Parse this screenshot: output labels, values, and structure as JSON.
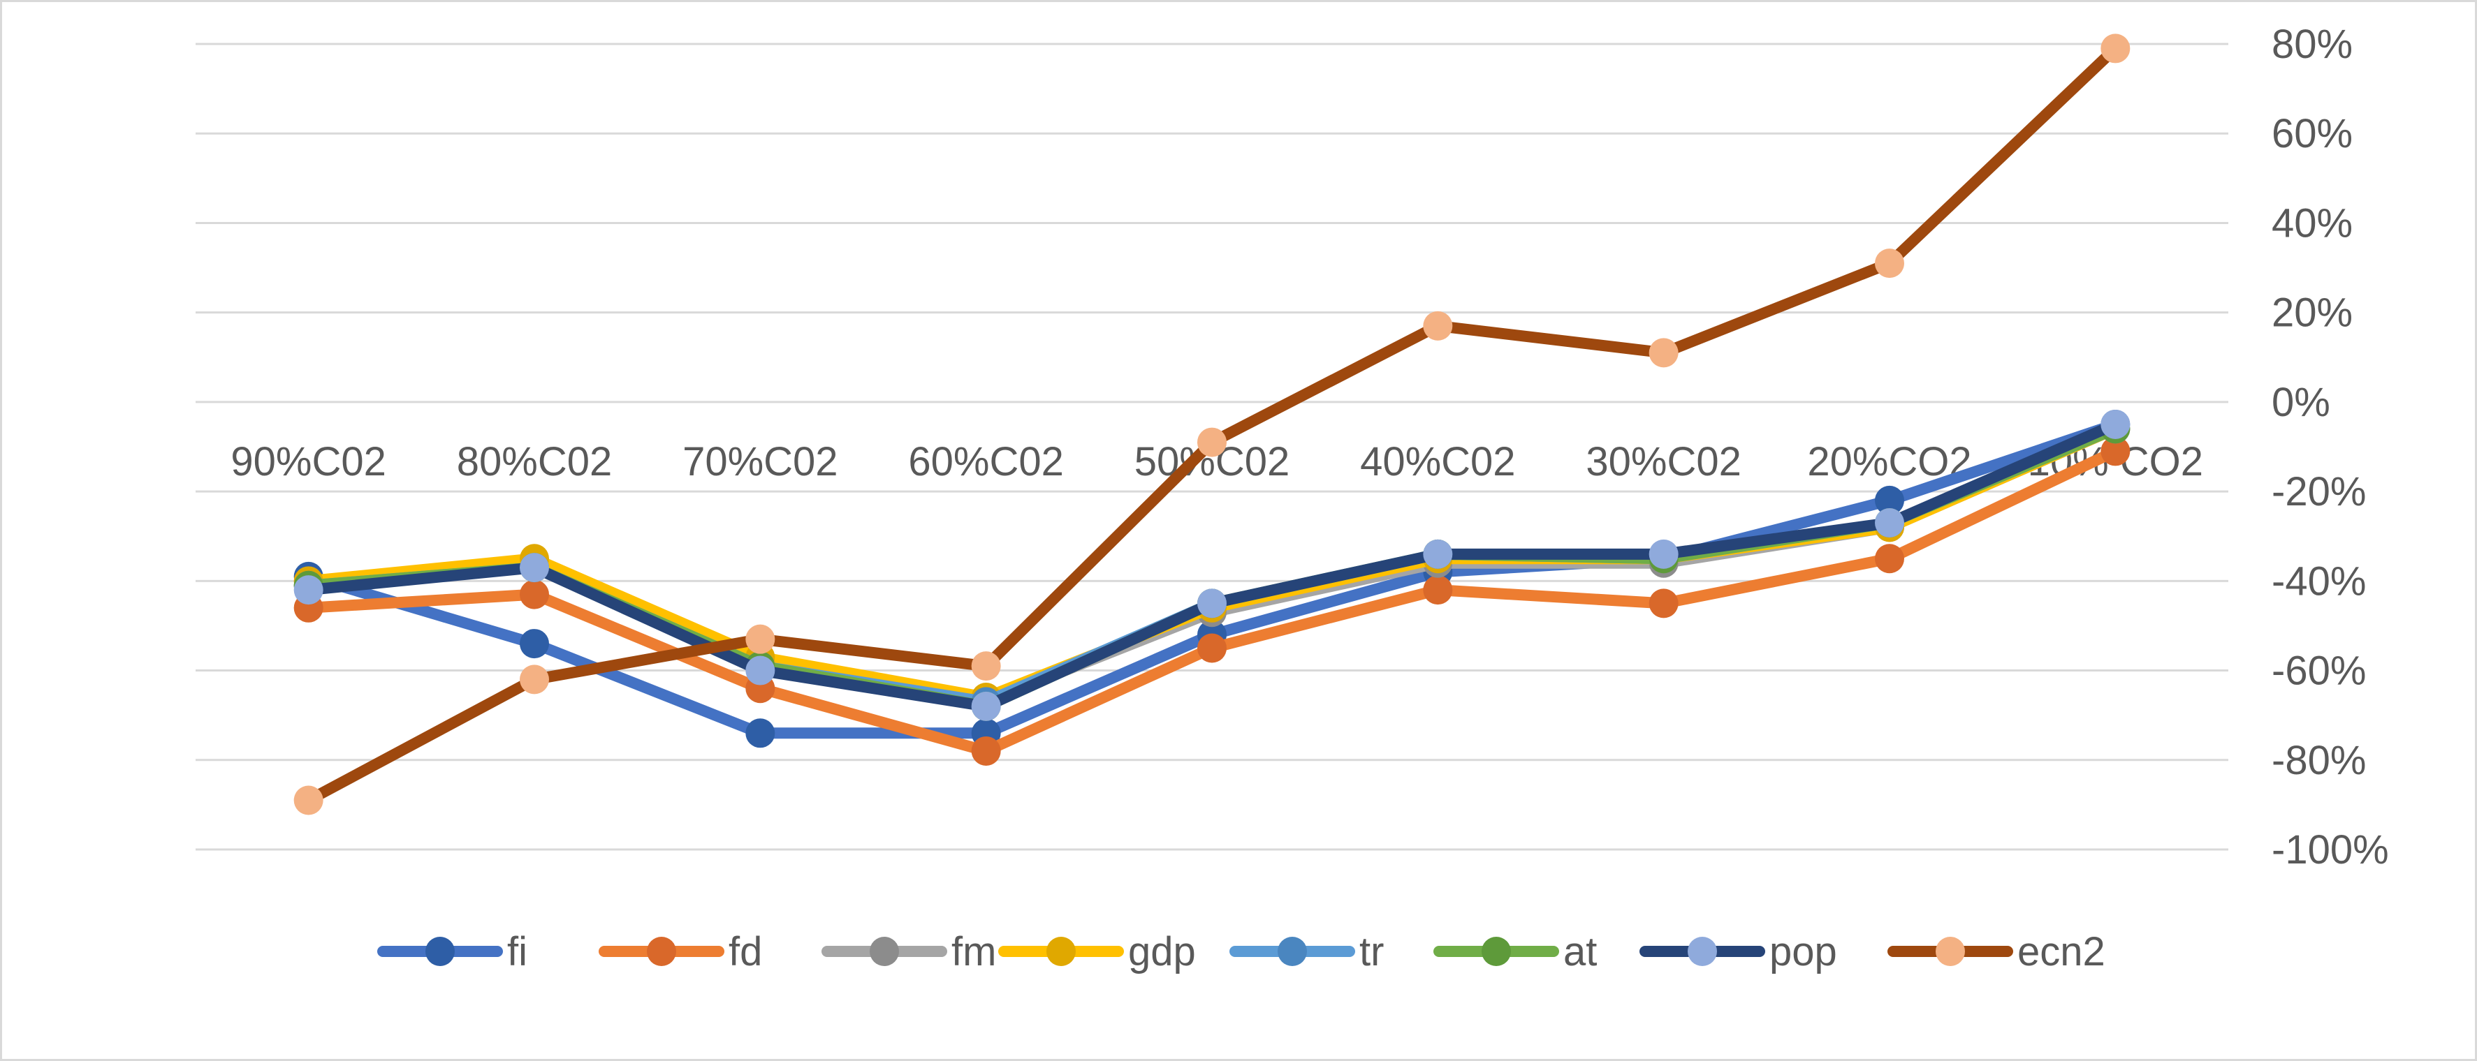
{
  "chart_data": {
    "type": "line",
    "title": "",
    "xlabel": "",
    "ylabel": "",
    "categories": [
      "90%C02",
      "80%C02",
      "70%C02",
      "60%C02",
      "50%C02",
      "40%C02",
      "30%C02",
      "20%CO2",
      "10% CO2"
    ],
    "y_ticks": [
      "80%",
      "60%",
      "40%",
      "20%",
      "0%",
      "-20%",
      "-40%",
      "-60%",
      "-80%",
      "-100%"
    ],
    "ylim": [
      -100,
      80
    ],
    "y_unit": "%",
    "y_axis_side": "right",
    "grid": true,
    "legend": "bottom",
    "series": [
      {
        "name": "fi",
        "color": "#4472c4",
        "marker_color": "#2e5ea6",
        "values": [
          -39,
          -54,
          -74,
          -74,
          -52,
          -38,
          -35,
          -22,
          -5
        ]
      },
      {
        "name": "fd",
        "color": "#ed7d31",
        "marker_color": "#d9682a",
        "values": [
          -46,
          -43,
          -64,
          -78,
          -55,
          -42,
          -45,
          -35,
          -11
        ]
      },
      {
        "name": "fm",
        "color": "#a5a5a5",
        "marker_color": "#8c8c8c",
        "values": [
          -41,
          -36,
          -58,
          -67,
          -47,
          -36,
          -36,
          -28,
          -6
        ]
      },
      {
        "name": "gdp",
        "color": "#ffc000",
        "marker_color": "#e0a800",
        "values": [
          -40,
          -35,
          -57,
          -66,
          -46,
          -35,
          -35,
          -28,
          -6
        ]
      },
      {
        "name": "tr",
        "color": "#5b9bd5",
        "marker_color": "#4a86c0",
        "values": [
          -41,
          -37,
          -59,
          -67,
          -45,
          -34,
          -35,
          -27,
          -6
        ]
      },
      {
        "name": "at",
        "color": "#70ad47",
        "marker_color": "#5e9a3a",
        "values": [
          -41,
          -37,
          -59,
          -68,
          -45,
          -34,
          -35,
          -27,
          -6
        ]
      },
      {
        "name": "pop",
        "color": "#264478",
        "marker_color": "#8faadc",
        "values": [
          -42,
          -37,
          -60,
          -68,
          -45,
          -34,
          -34,
          -27,
          -5
        ]
      },
      {
        "name": "ecn2",
        "color": "#9e480e",
        "marker_color": "#f4b183",
        "values": [
          -89,
          -62,
          -53,
          -59,
          -9,
          17,
          11,
          31,
          79
        ]
      }
    ]
  }
}
